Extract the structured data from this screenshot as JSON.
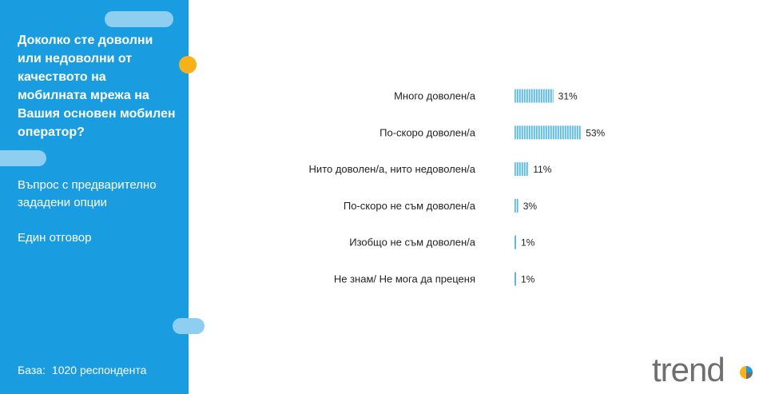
{
  "sidebar": {
    "question": "Доколко сте доволни или недоволни от качеството на мобилната мрежа на Вашия основен мобилен оператор?",
    "question_type": "Въпрос с предварително зададени опции",
    "answer_type": "Един отговор",
    "base_label": "База:",
    "base_value": "1020 респондента"
  },
  "logo": {
    "text": "trend"
  },
  "colors": {
    "sidebar": "#1a9de0",
    "accent_dot": "#f7b21b",
    "bar": "#5bb8e6",
    "pill": "#8ecff1"
  },
  "chart_data": {
    "type": "bar",
    "orientation": "horizontal",
    "categories": [
      "Много доволен/а",
      "По-скоро доволен/а",
      "Нито доволен/а, нито недоволен/а",
      "По-скоро не съм доволен/а",
      "Изобщо не съм доволен/а",
      "Не знам/ Не мога да преценя"
    ],
    "values": [
      31,
      53,
      11,
      3,
      1,
      1
    ],
    "value_labels": [
      "31%",
      "53%",
      "11%",
      "3%",
      "1%",
      "1%"
    ],
    "unit": "%",
    "xlim": [
      0,
      100
    ],
    "grid": false,
    "legend": "none"
  }
}
